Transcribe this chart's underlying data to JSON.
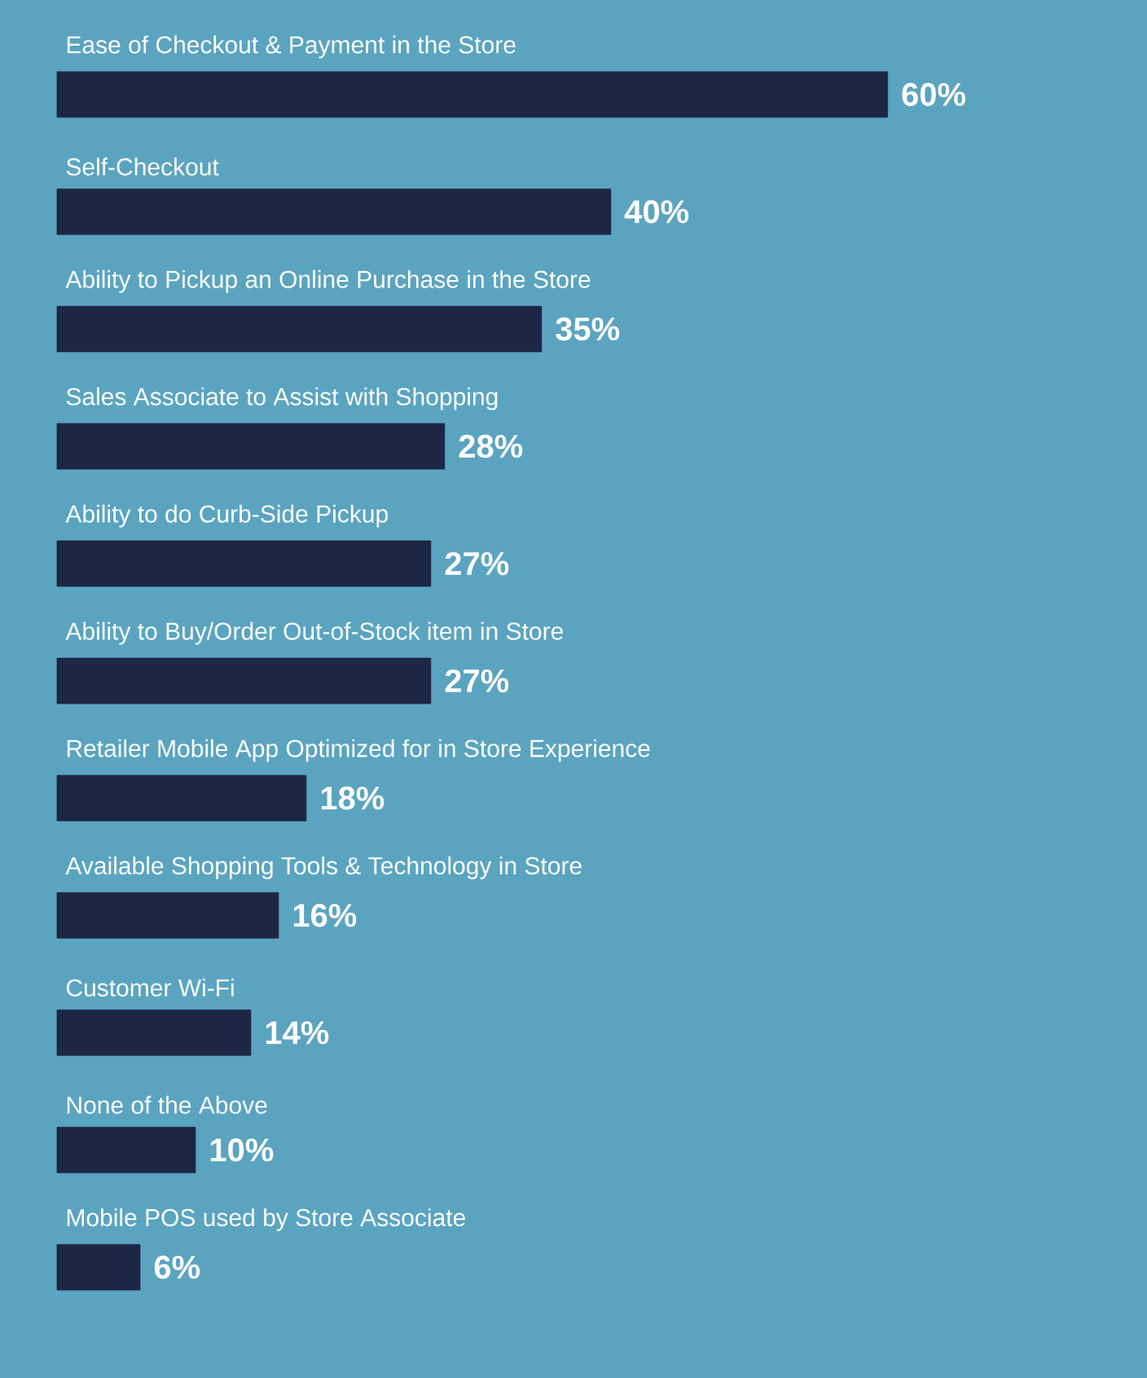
{
  "chart_data": {
    "type": "bar",
    "orientation": "horizontal",
    "categories": [
      "Ease of Checkout & Payment in the Store",
      "Self-Checkout",
      "Ability to Pickup an Online Purchase in the Store",
      "Sales Associate to Assist with Shopping",
      "Ability to do Curb-Side Pickup",
      "Ability to Buy/Order Out-of-Stock item in Store",
      "Retailer Mobile App Optimized for in Store Experience",
      "Available Shopping Tools & Technology in Store",
      "Customer Wi-Fi",
      "None of the Above",
      "Mobile POS used by Store Associate"
    ],
    "values": [
      60,
      40,
      35,
      28,
      27,
      27,
      18,
      16,
      14,
      10,
      6
    ],
    "value_labels": [
      "60%",
      "40%",
      "35%",
      "28%",
      "27%",
      "27%",
      "18%",
      "16%",
      "14%",
      "10%",
      "6%"
    ],
    "color": "#1d2645"
  }
}
